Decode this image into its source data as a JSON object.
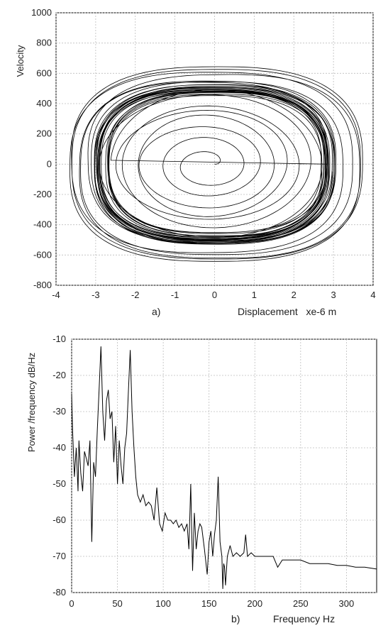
{
  "chart_data": [
    {
      "type": "line",
      "subtype": "phase-portrait",
      "panel_label": "a)",
      "xlabel": "Displacement   xe-6 m",
      "ylabel": "Velocity",
      "xlim": [
        -4,
        4
      ],
      "ylim": [
        -800,
        1000
      ],
      "xticks": [
        -4,
        -3,
        -2,
        -1,
        0,
        1,
        2,
        3,
        4
      ],
      "yticks": [
        -800,
        -600,
        -400,
        -200,
        0,
        200,
        400,
        600,
        800,
        1000
      ],
      "grid": true,
      "line_color": "#000000",
      "series": [
        {
          "description_points": [
            {
              "x": 0.0,
              "y": 0
            },
            {
              "x": 0.5,
              "y": 130
            },
            {
              "x": 1.1,
              "y": 60
            },
            {
              "x": 0.6,
              "y": -150
            },
            {
              "x": -0.6,
              "y": -150
            },
            {
              "x": -1.9,
              "y": 0
            },
            {
              "x": -0.5,
              "y": 250
            },
            {
              "x": 2.2,
              "y": 300
            },
            {
              "x": 3.0,
              "y": 0
            },
            {
              "x": 2.0,
              "y": -400
            },
            {
              "x": -2.9,
              "y": 0
            },
            {
              "x": 0.0,
              "y": 500
            },
            {
              "x": 3.4,
              "y": 0
            },
            {
              "x": 0.0,
              "y": -800
            },
            {
              "x": -3.7,
              "y": 0
            },
            {
              "x": 0.0,
              "y": 800
            },
            {
              "x": 3.8,
              "y": 0
            }
          ],
          "limit_cycle": {
            "x_amplitude": 2.85,
            "y_amplitude": 490
          }
        }
      ]
    },
    {
      "type": "line",
      "subtype": "power-spectral-density",
      "panel_label": "b)",
      "xlabel": "Frequency Hz",
      "ylabel": "Power /frequency dB/Hz",
      "xlim": [
        0,
        333
      ],
      "ylim": [
        -80,
        -10
      ],
      "xticks": [
        0,
        50,
        100,
        150,
        200,
        250,
        300
      ],
      "yticks": [
        -10,
        -20,
        -30,
        -40,
        -50,
        -60,
        -70,
        -80
      ],
      "grid": true,
      "line_color": "#000000",
      "series": [
        {
          "x": [
            0,
            1,
            3,
            5,
            7,
            8,
            10,
            12,
            14,
            16,
            18,
            20,
            22,
            24,
            26,
            28,
            30,
            32,
            34,
            36,
            38,
            40,
            42,
            44,
            46,
            48,
            50,
            52,
            54,
            56,
            58,
            60,
            62,
            64,
            66,
            68,
            70,
            72,
            75,
            78,
            81,
            84,
            87,
            90,
            93,
            96,
            99,
            102,
            105,
            108,
            111,
            114,
            117,
            120,
            123,
            126,
            128,
            130,
            132,
            134,
            136,
            138,
            140,
            142,
            145,
            148,
            150,
            152,
            154,
            156,
            158,
            160,
            162,
            164,
            165,
            166,
            167,
            168,
            170,
            173,
            176,
            180,
            184,
            188,
            190,
            192,
            196,
            200,
            210,
            220,
            225,
            230,
            240,
            250,
            260,
            270,
            280,
            290,
            300,
            310,
            320,
            333
          ],
          "y": [
            -25,
            -35,
            -48,
            -40,
            -52,
            -38,
            -47,
            -52,
            -41,
            -43,
            -45,
            -38,
            -66,
            -44,
            -48,
            -35,
            -24,
            -12,
            -30,
            -38,
            -27,
            -24,
            -32,
            -30,
            -44,
            -34,
            -50,
            -38,
            -45,
            -50,
            -40,
            -36,
            -24,
            -13,
            -30,
            -40,
            -48,
            -53,
            -55,
            -53,
            -56,
            -55,
            -56,
            -60,
            -51,
            -61,
            -63,
            -58,
            -60,
            -60,
            -61,
            -60,
            -62,
            -61,
            -63,
            -61,
            -68,
            -50,
            -74,
            -58,
            -68,
            -63,
            -61,
            -62,
            -68,
            -75,
            -66,
            -63,
            -70,
            -64,
            -60,
            -48,
            -66,
            -70,
            -79,
            -72,
            -73,
            -78,
            -70,
            -67,
            -70,
            -69,
            -70,
            -69,
            -64,
            -70,
            -69,
            -70,
            -70,
            -70,
            -73,
            -71,
            -71,
            -71,
            -72,
            -72,
            -72,
            -72.5,
            -72.5,
            -73,
            -73,
            -73.5
          ]
        }
      ]
    }
  ]
}
